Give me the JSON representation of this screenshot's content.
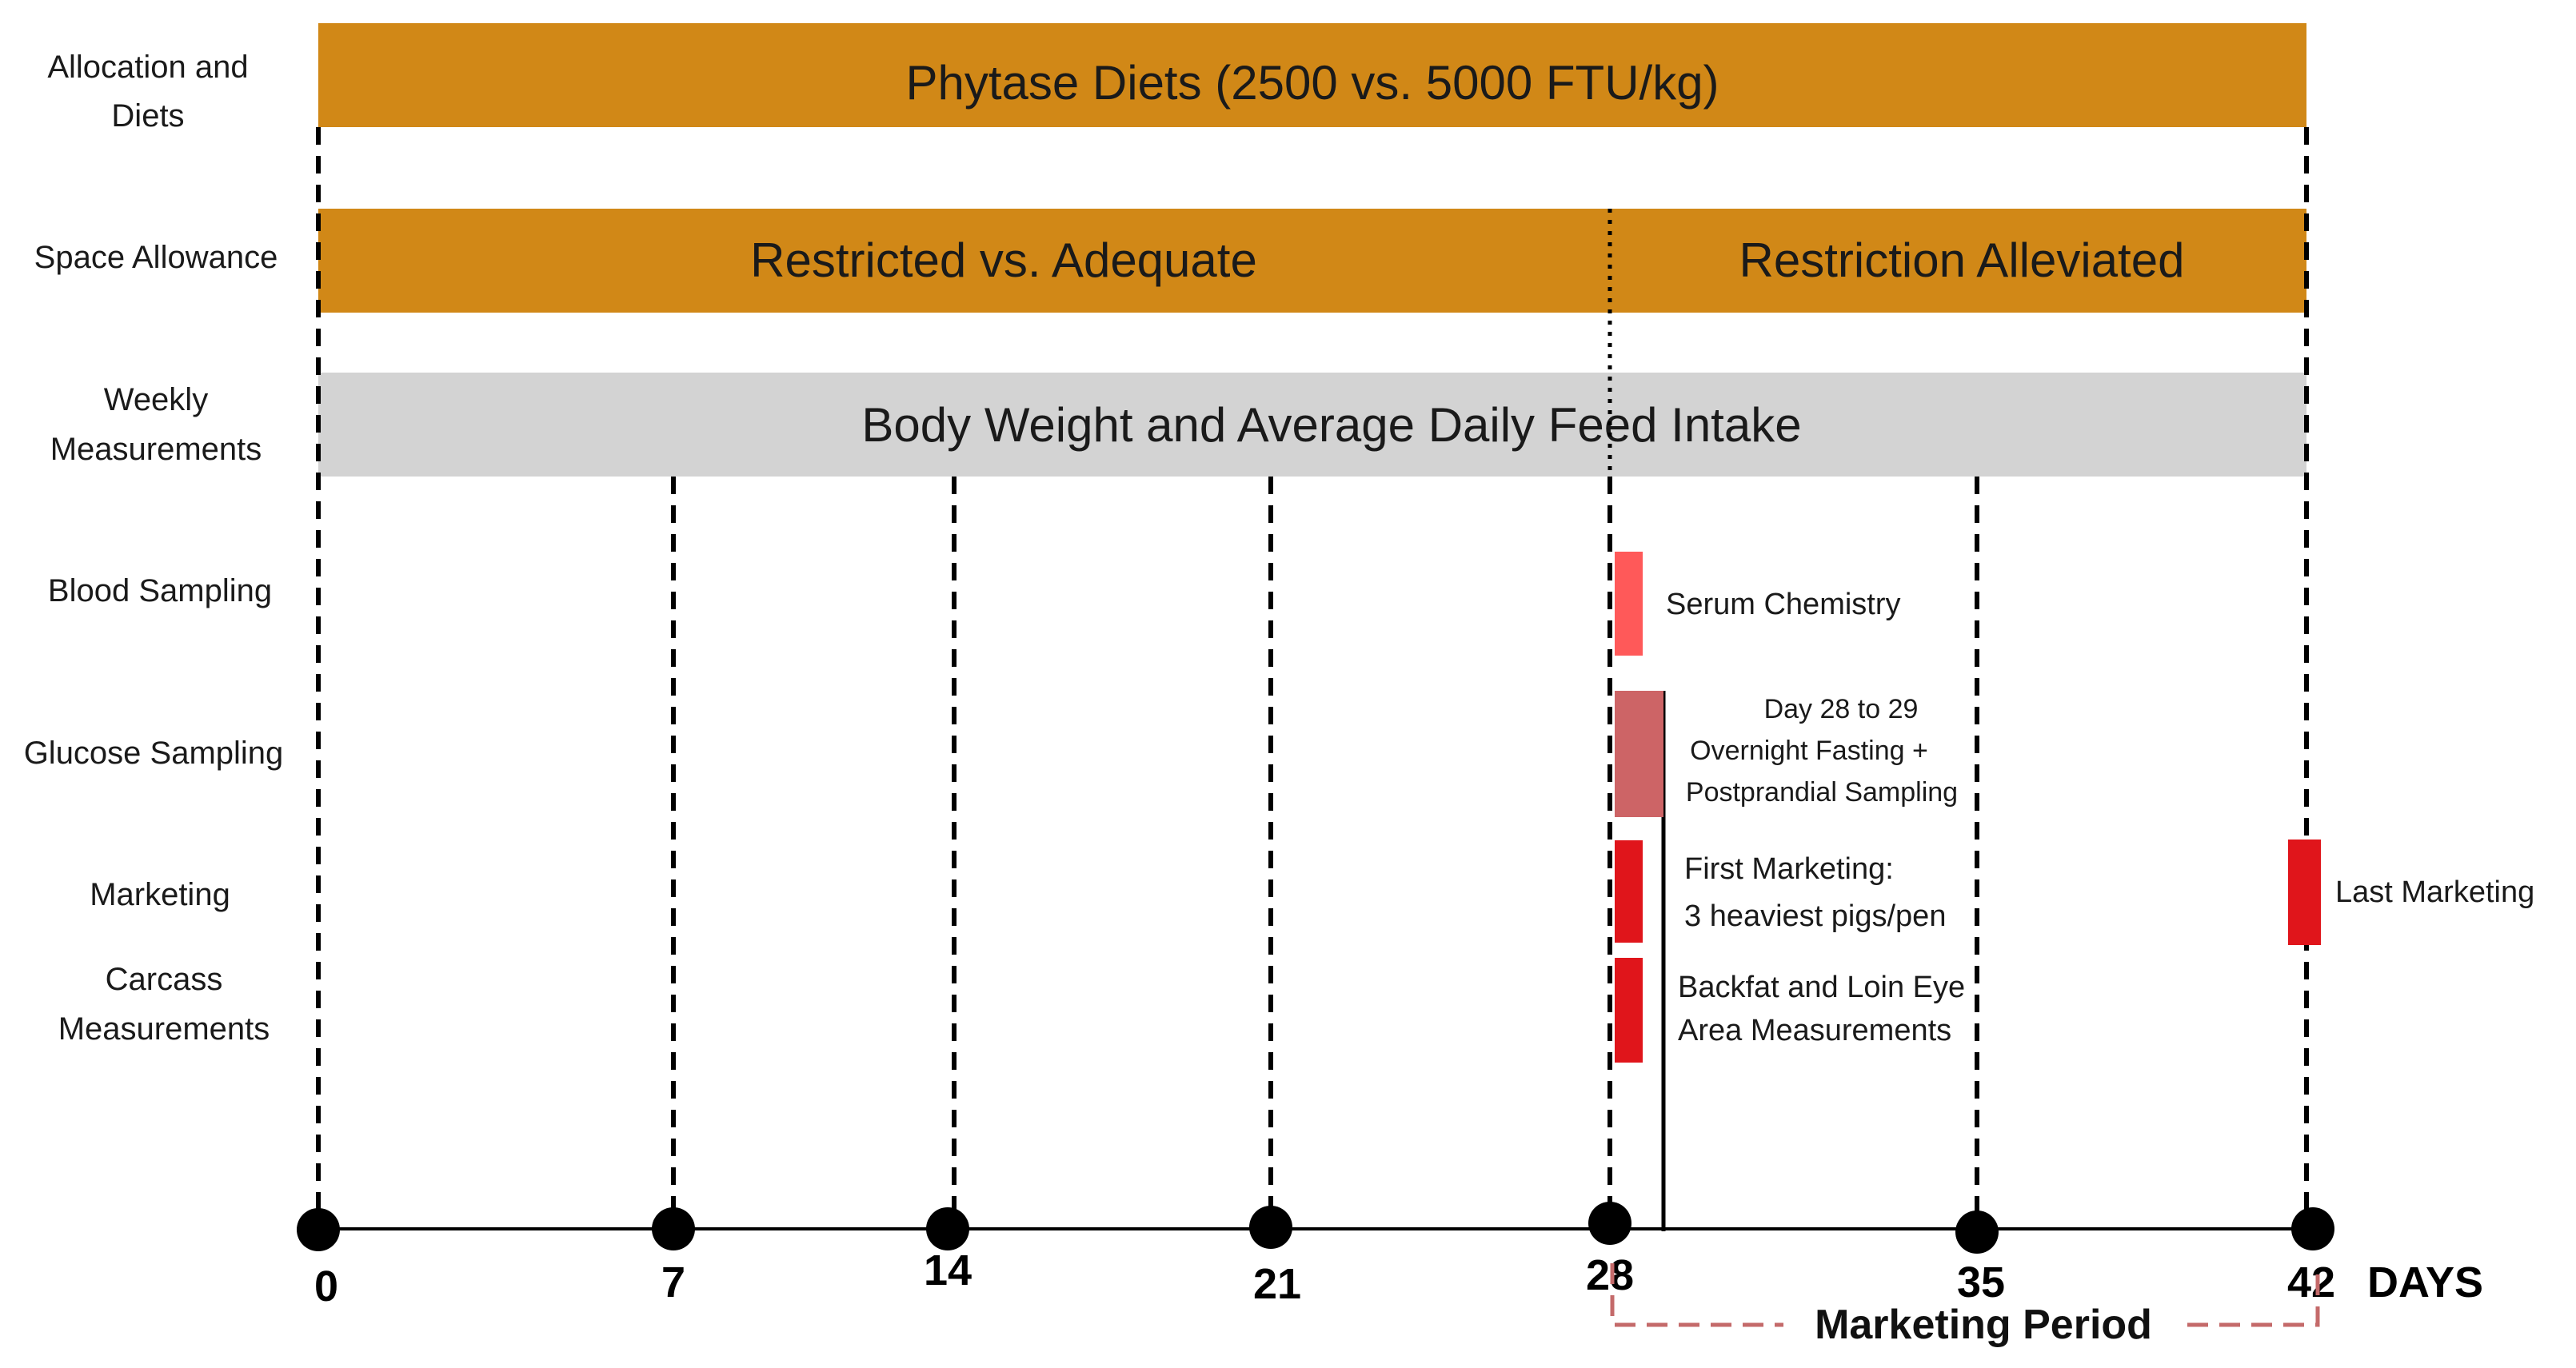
{
  "row_labels": {
    "allocation": [
      "Allocation and",
      "Diets"
    ],
    "space": "Space Allowance",
    "weekly": [
      "Weekly",
      "Measurements"
    ],
    "blood": "Blood Sampling",
    "glucose": "Glucose Sampling",
    "marketing": "Marketing",
    "carcass": [
      "Carcass",
      "Measurements"
    ]
  },
  "bars": {
    "phytase": "Phytase Diets (2500 vs. 5000 FTU/kg)",
    "restricted": "Restricted vs. Adequate",
    "alleviated": "Restriction Alleviated",
    "weekly": "Body Weight and Average Daily Feed Intake"
  },
  "events": {
    "serum": "Serum Chemistry",
    "glucose": [
      "Day 28 to 29",
      "Overnight Fasting +",
      "Postprandial Sampling"
    ],
    "first_marketing": [
      "First Marketing:",
      "3 heaviest pigs/pen"
    ],
    "carcass": [
      "Backfat and Loin Eye",
      "Area Measurements"
    ],
    "last_marketing": "Last Marketing"
  },
  "timeline": {
    "days": [
      "0",
      "7",
      "14",
      "21",
      "28",
      "35",
      "42"
    ],
    "unit": "DAYS",
    "marketing_period": "Marketing Period"
  },
  "colors": {
    "orange_bar": "#D18817",
    "gray_bar": "#D3D3D3",
    "serum": "#FF5959",
    "glucose": "#CD6466",
    "marketing": "#E0151B",
    "period_line": "#C46A6A"
  }
}
